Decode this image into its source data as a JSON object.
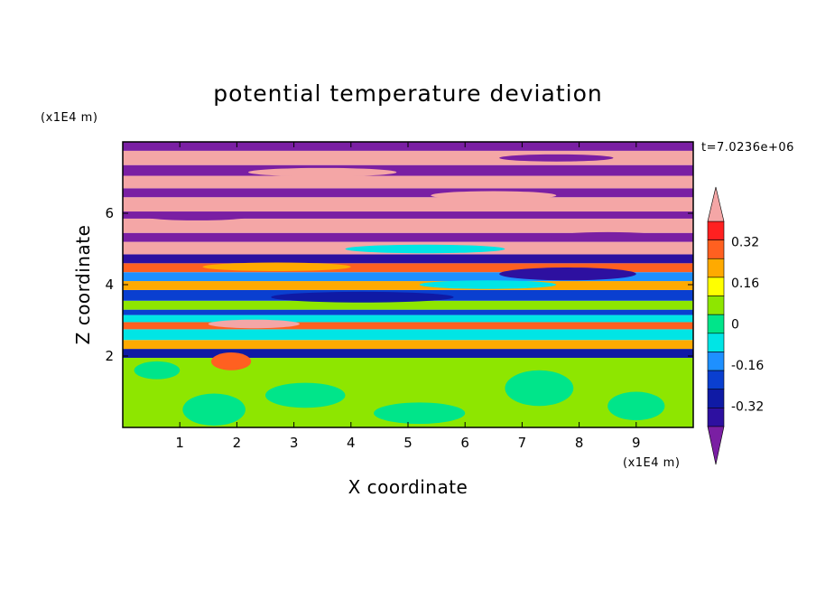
{
  "chart_data": {
    "type": "heatmap",
    "title": "potential temperature deviation",
    "xlabel": "X coordinate",
    "ylabel": "Z coordinate",
    "x_unit": "(x1E4 m)",
    "y_unit": "(x1E4 m)",
    "time_label": "t=7.0236e+06",
    "xlim": [
      0,
      10
    ],
    "ylim": [
      0,
      8
    ],
    "xticks": [
      "1",
      "2",
      "3",
      "4",
      "5",
      "6",
      "7",
      "8",
      "9"
    ],
    "yticks": [
      "2",
      "4",
      "6"
    ],
    "colorbar": {
      "levels": [
        -0.48,
        -0.4,
        -0.32,
        -0.24,
        -0.16,
        -0.08,
        0,
        0.08,
        0.16,
        0.24,
        0.32,
        0.4,
        0.48
      ],
      "colors": [
        "#7a1fa3",
        "#2d10a0",
        "#0f1aa5",
        "#0a3fd0",
        "#1e90ff",
        "#00e5e5",
        "#00e58a",
        "#8ee600",
        "#ffff00",
        "#ffaa00",
        "#ff6020",
        "#ff2020",
        "#f4a6a6"
      ],
      "tick_labels": [
        "0.32",
        "0.16",
        "0",
        "-0.16",
        "-0.32"
      ],
      "tick_values": [
        0.32,
        0.16,
        0,
        -0.16,
        -0.32
      ]
    },
    "bands": [
      {
        "z0": 0.0,
        "z1": 1.95,
        "value": 0.06
      },
      {
        "z0": 1.95,
        "z1": 2.2,
        "value": -0.36
      },
      {
        "z0": 2.2,
        "z1": 2.45,
        "value": 0.2
      },
      {
        "z0": 2.45,
        "z1": 2.75,
        "value": -0.05
      },
      {
        "z0": 2.75,
        "z1": 2.95,
        "value": 0.3
      },
      {
        "z0": 2.95,
        "z1": 3.15,
        "value": -0.1
      },
      {
        "z0": 3.15,
        "z1": 3.3,
        "value": -0.22
      },
      {
        "z0": 3.3,
        "z1": 3.55,
        "value": 0.08
      },
      {
        "z0": 3.55,
        "z1": 3.85,
        "value": -0.28
      },
      {
        "z0": 3.85,
        "z1": 4.1,
        "value": 0.25
      },
      {
        "z0": 4.1,
        "z1": 4.35,
        "value": -0.15
      },
      {
        "z0": 4.35,
        "z1": 4.6,
        "value": 0.35
      },
      {
        "z0": 4.6,
        "z1": 4.85,
        "value": -0.4
      },
      {
        "z0": 4.85,
        "z1": 5.2,
        "value": 0.45
      },
      {
        "z0": 5.2,
        "z1": 5.45,
        "value": -0.45
      },
      {
        "z0": 5.45,
        "z1": 5.85,
        "value": 0.45
      },
      {
        "z0": 5.85,
        "z1": 6.05,
        "value": -0.45
      },
      {
        "z0": 6.05,
        "z1": 6.45,
        "value": 0.45
      },
      {
        "z0": 6.45,
        "z1": 6.7,
        "value": -0.45
      },
      {
        "z0": 6.7,
        "z1": 7.05,
        "value": 0.45
      },
      {
        "z0": 7.05,
        "z1": 7.35,
        "value": -0.45
      },
      {
        "z0": 7.35,
        "z1": 7.75,
        "value": 0.45
      },
      {
        "z0": 7.75,
        "z1": 8.0,
        "value": -0.45
      }
    ],
    "blobs": [
      {
        "x": 1.6,
        "z": 0.5,
        "rx": 0.55,
        "rz": 0.45,
        "value": 0.02
      },
      {
        "x": 3.2,
        "z": 0.9,
        "rx": 0.7,
        "rz": 0.35,
        "value": 0.02
      },
      {
        "x": 5.2,
        "z": 0.4,
        "rx": 0.8,
        "rz": 0.3,
        "value": 0.02
      },
      {
        "x": 7.3,
        "z": 1.1,
        "rx": 0.6,
        "rz": 0.5,
        "value": 0.02
      },
      {
        "x": 9.0,
        "z": 0.6,
        "rx": 0.5,
        "rz": 0.4,
        "value": 0.02
      },
      {
        "x": 0.6,
        "z": 1.6,
        "rx": 0.4,
        "rz": 0.25,
        "value": 0.02
      },
      {
        "x": 1.9,
        "z": 1.85,
        "rx": 0.35,
        "rz": 0.25,
        "value": 0.3
      },
      {
        "x": 2.3,
        "z": 2.9,
        "rx": 0.8,
        "rz": 0.12,
        "value": 0.45
      },
      {
        "x": 4.2,
        "z": 3.65,
        "rx": 1.6,
        "rz": 0.15,
        "value": -0.36
      },
      {
        "x": 6.4,
        "z": 4.0,
        "rx": 1.2,
        "rz": 0.12,
        "value": -0.1
      },
      {
        "x": 2.7,
        "z": 4.5,
        "rx": 1.3,
        "rz": 0.12,
        "value": 0.2
      },
      {
        "x": 7.8,
        "z": 4.3,
        "rx": 1.2,
        "rz": 0.18,
        "value": -0.4
      },
      {
        "x": 5.3,
        "z": 5.0,
        "rx": 1.4,
        "rz": 0.12,
        "value": -0.1
      },
      {
        "x": 8.5,
        "z": 5.35,
        "rx": 1.0,
        "rz": 0.12,
        "value": -0.45
      },
      {
        "x": 1.3,
        "z": 5.9,
        "rx": 0.9,
        "rz": 0.1,
        "value": -0.45
      },
      {
        "x": 6.5,
        "z": 6.5,
        "rx": 1.1,
        "rz": 0.12,
        "value": 0.45
      },
      {
        "x": 3.5,
        "z": 7.15,
        "rx": 1.3,
        "rz": 0.12,
        "value": 0.45
      },
      {
        "x": 7.6,
        "z": 7.55,
        "rx": 1.0,
        "rz": 0.1,
        "value": -0.45
      }
    ]
  }
}
